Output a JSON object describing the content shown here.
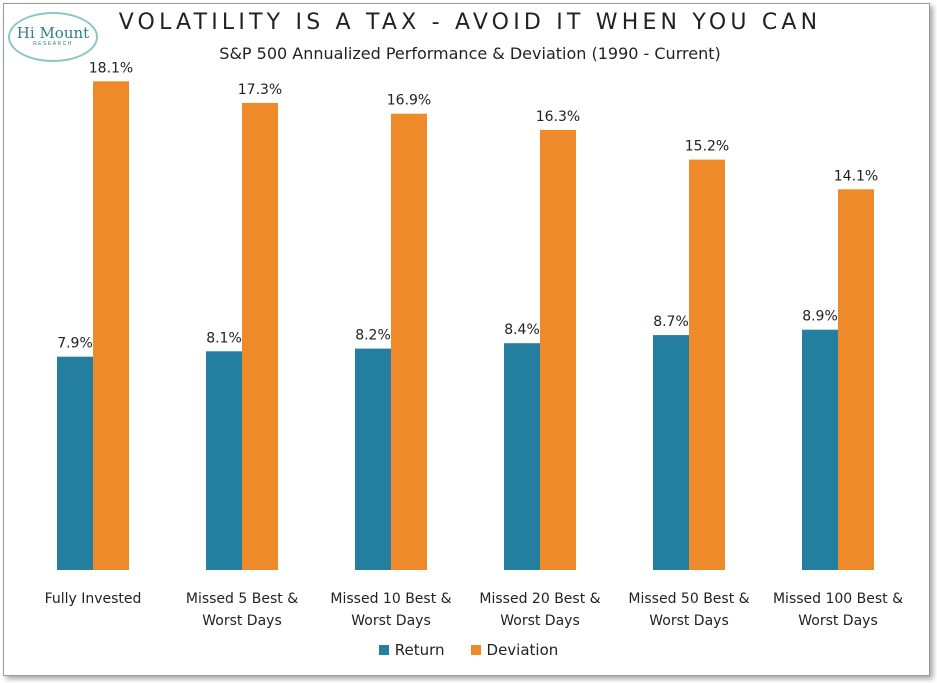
{
  "logo": {
    "main": "Hi Mount",
    "sub": "RESEARCH"
  },
  "chart_data": {
    "type": "bar",
    "title": "VOLATILITY IS A TAX - AVOID IT WHEN YOU CAN",
    "subtitle": "S&P 500 Annualized Performance & Deviation (1990 - Current)",
    "categories": [
      "Fully Invested",
      "Missed 5 Best & Worst Days",
      "Missed 10 Best & Worst Days",
      "Missed 20 Best & Worst Days",
      "Missed 50 Best & Worst Days",
      "Missed 100 Best & Worst Days"
    ],
    "category_lines": [
      [
        "Fully Invested"
      ],
      [
        "Missed 5 Best &",
        "Worst Days"
      ],
      [
        "Missed 10 Best &",
        "Worst Days"
      ],
      [
        "Missed 20 Best &",
        "Worst Days"
      ],
      [
        "Missed 50 Best &",
        "Worst Days"
      ],
      [
        "Missed 100 Best &",
        "Worst Days"
      ]
    ],
    "series": [
      {
        "name": "Return",
        "color": "#247e9f",
        "values": [
          7.9,
          8.1,
          8.2,
          8.4,
          8.7,
          8.9
        ],
        "labels": [
          "7.9%",
          "8.1%",
          "8.2%",
          "8.4%",
          "8.7%",
          "8.9%"
        ]
      },
      {
        "name": "Deviation",
        "color": "#ee8a2a",
        "values": [
          18.1,
          17.3,
          16.9,
          16.3,
          15.2,
          14.1
        ],
        "labels": [
          "18.1%",
          "17.3%",
          "16.9%",
          "16.3%",
          "15.2%",
          "14.1%"
        ]
      }
    ],
    "ylim": [
      0,
      20
    ],
    "grid": false,
    "legend": "bottom",
    "xlabel": "",
    "ylabel": ""
  }
}
